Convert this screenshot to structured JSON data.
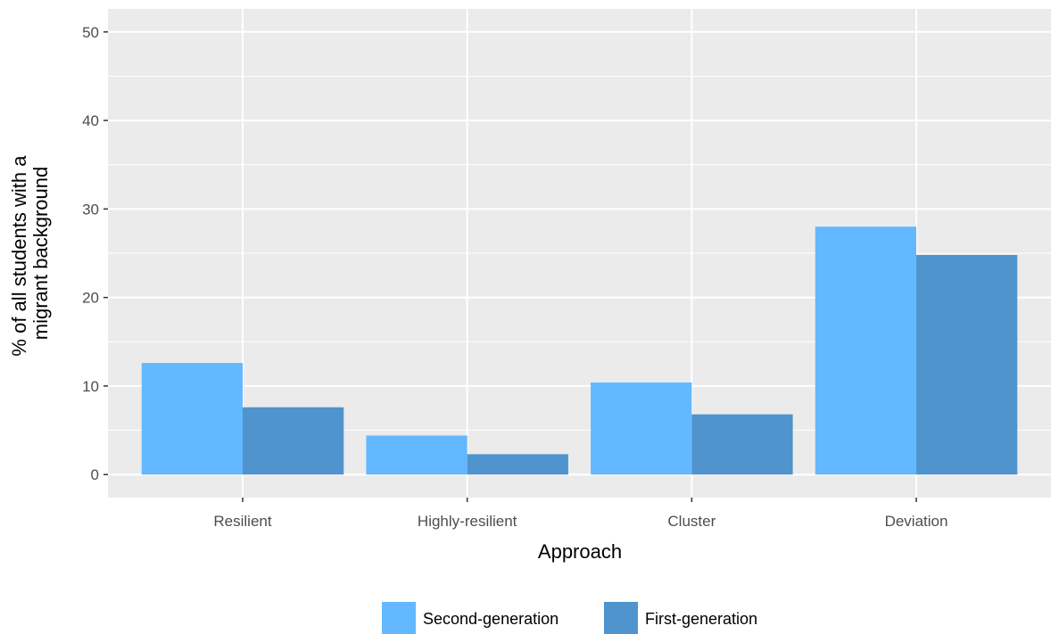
{
  "chart_data": {
    "type": "bar",
    "categories": [
      "Resilient",
      "Highly-resilient",
      "Cluster",
      "Deviation"
    ],
    "series": [
      {
        "name": "Second-generation",
        "values": [
          12.6,
          4.4,
          10.4,
          28.0
        ],
        "color": "#63b8ff"
      },
      {
        "name": "First-generation",
        "values": [
          7.6,
          2.3,
          6.8,
          24.8
        ],
        "color": "#4f94cd"
      }
    ],
    "xlabel": "Approach",
    "ylabel_lines": [
      "% of all students with a",
      "migrant background"
    ],
    "ylim": [
      -2.6,
      52.6
    ],
    "yticks": [
      0,
      10,
      20,
      30,
      40,
      50
    ],
    "grid": true,
    "legend_position": "bottom",
    "panel_color": "#ebebeb",
    "grid_color": "#ffffff"
  }
}
